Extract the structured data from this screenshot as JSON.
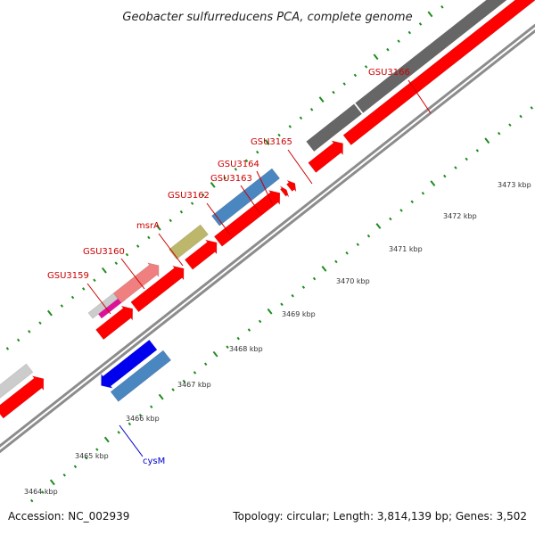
{
  "title": "Geobacter sulfurreducens PCA, complete genome",
  "footer": {
    "accession": "Accession: NC_002939",
    "topology": "Topology: circular; Length: 3,814,139 bp; Genes: 3,502"
  },
  "colors": {
    "backbone": "#8c8c8c",
    "tick": "#1e8c1e",
    "cds": "#ff0000",
    "label_forward": "#cc0000",
    "label_reverse": "#0000cc",
    "gray_dark": "#666666",
    "gray_light": "#cccccc",
    "pink": "#f08080",
    "magenta": "#e0109a",
    "olive": "#bdb76b",
    "steel": "#4a86c0",
    "blue": "#0000ee"
  },
  "tick_labels": [
    "3464 kbp",
    "3465 kbp",
    "3466 kbp",
    "3467 kbp",
    "3468 kbp",
    "3469 kbp",
    "3470 kbp",
    "3471 kbp",
    "3472 kbp",
    "3473 kbp"
  ],
  "gene_labels": [
    {
      "text": "GSU3159",
      "color": "#cc0000"
    },
    {
      "text": "GSU3160",
      "color": "#cc0000"
    },
    {
      "text": "msrA",
      "color": "#cc0000"
    },
    {
      "text": "GSU3162",
      "color": "#cc0000"
    },
    {
      "text": "GSU3163",
      "color": "#cc0000"
    },
    {
      "text": "GSU3164",
      "color": "#cc0000"
    },
    {
      "text": "GSU3165",
      "color": "#cc0000"
    },
    {
      "text": "GSU3166",
      "color": "#cc0000"
    },
    {
      "text": "cysM",
      "color": "#0000cc"
    }
  ]
}
